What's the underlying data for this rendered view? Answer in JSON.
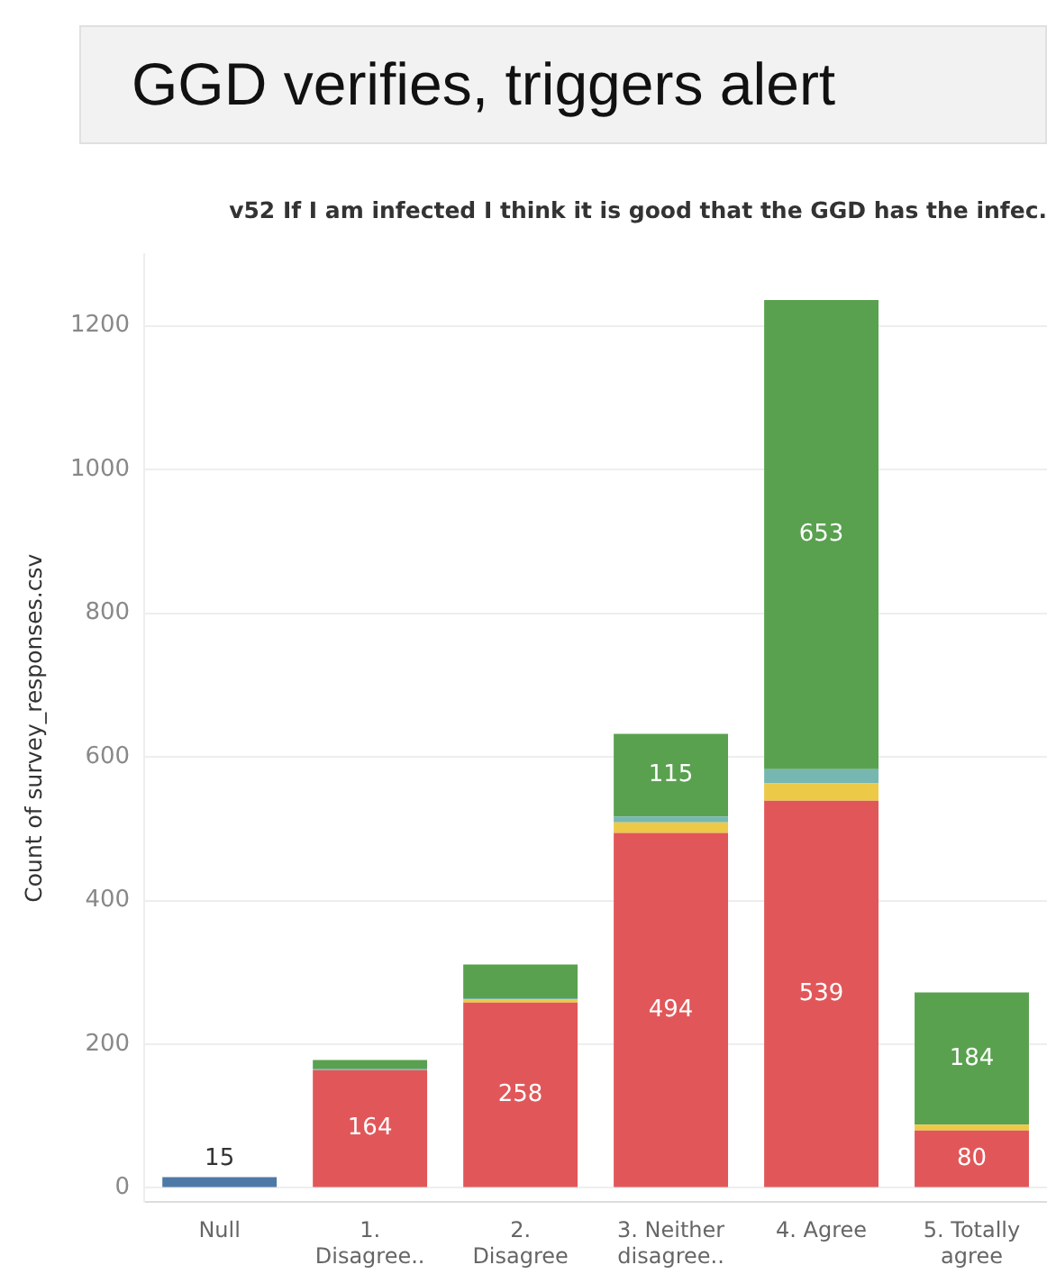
{
  "chart_data": {
    "type": "bar",
    "title": "GGD verifies, triggers alert",
    "subtitle": "v52 If I am infected I think it is good that the GGD has the infec.",
    "ylabel": "Count of survey_responses.csv",
    "categories": [
      "Null",
      "1. Disagree..",
      "2. Disagree",
      "3. Neither disagree..",
      "4. Agree",
      "5. Totally agree"
    ],
    "stacked": true,
    "grid": "y",
    "legend": false,
    "ylim": [
      -20,
      1300
    ],
    "yticks": [
      0,
      200,
      400,
      600,
      800,
      1000,
      1200
    ],
    "series": [
      {
        "color": "#e15759",
        "values": [
          null,
          164,
          258,
          494,
          539,
          80
        ],
        "value_labels": [
          null,
          "164",
          "258",
          "494",
          "539",
          "80"
        ]
      },
      {
        "color": "#edc948",
        "values": [
          null,
          null,
          4,
          15,
          24,
          8
        ]
      },
      {
        "color": "#76b7b2",
        "values": [
          null,
          2,
          2,
          8,
          20,
          null
        ]
      },
      {
        "color": "#59a14f",
        "values": [
          null,
          12,
          47,
          115,
          653,
          184
        ],
        "value_labels": [
          null,
          null,
          null,
          "115",
          "653",
          "184"
        ]
      },
      {
        "color": "#4e79a7",
        "values": [
          15,
          null,
          null,
          null,
          null,
          null
        ],
        "value_labels": [
          "15",
          null,
          null,
          null,
          null,
          null
        ]
      }
    ]
  }
}
